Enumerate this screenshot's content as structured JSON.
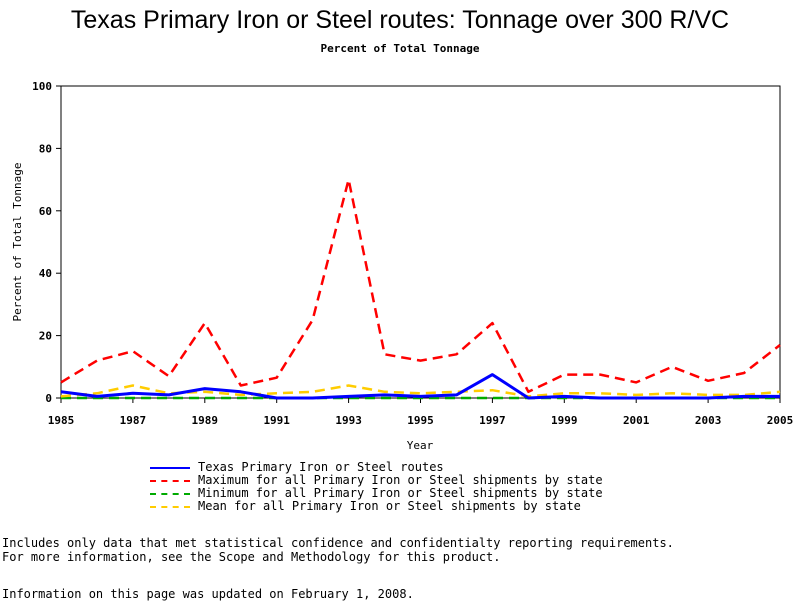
{
  "chart_data": {
    "type": "line",
    "title": "Texas Primary Iron or Steel routes: Tonnage over 300 R/VC",
    "subtitle": "Percent of Total Tonnage",
    "xlabel": "Year",
    "ylabel": "Percent of Total Tonnage",
    "xlim": [
      1985,
      2005
    ],
    "ylim": [
      0,
      100
    ],
    "x_ticks": [
      "1985",
      "1987",
      "1989",
      "1991",
      "1993",
      "1995",
      "1997",
      "1999",
      "2001",
      "2003",
      "2005"
    ],
    "y_ticks": [
      "0",
      "20",
      "40",
      "60",
      "80",
      "100"
    ],
    "grid": false,
    "legend_position": "bottom",
    "x": [
      1985,
      1986,
      1987,
      1988,
      1989,
      1990,
      1991,
      1992,
      1993,
      1994,
      1995,
      1996,
      1997,
      1998,
      1999,
      2000,
      2001,
      2002,
      2003,
      2004,
      2005
    ],
    "series": [
      {
        "name": "Texas Primary Iron or Steel routes",
        "color": "#0000ff",
        "dash": "solid",
        "values": [
          2,
          0.5,
          1.5,
          1,
          3,
          2,
          0,
          0,
          0.5,
          1,
          0.5,
          1,
          7.5,
          0,
          0.5,
          0,
          0,
          0,
          0,
          0.5,
          0.5
        ]
      },
      {
        "name": "Maximum for all Primary Iron or Steel shipments by state",
        "color": "#ff0000",
        "dash": "dashed",
        "values": [
          5,
          12,
          15,
          7,
          24,
          4,
          6.5,
          25,
          70,
          14,
          12,
          14,
          24,
          2,
          7.5,
          7.5,
          5,
          10,
          5.5,
          8,
          17
        ]
      },
      {
        "name": "Minimum for all Primary Iron or Steel shipments by state",
        "color": "#00aa00",
        "dash": "dashed",
        "values": [
          0,
          0,
          0,
          0,
          0,
          0,
          0,
          0,
          0,
          0,
          0,
          0,
          0,
          0,
          0,
          0,
          0,
          0,
          0,
          0,
          0
        ]
      },
      {
        "name": "Mean for all Primary Iron or Steel shipments by state",
        "color": "#ffcc00",
        "dash": "dashed",
        "values": [
          0.5,
          1.5,
          4,
          1.5,
          2,
          1,
          1.5,
          2,
          4,
          2,
          1.5,
          2,
          2.5,
          0.5,
          1.5,
          1.5,
          1,
          1.5,
          1,
          1,
          2
        ]
      }
    ]
  },
  "notes": {
    "line1": "Includes only data that met statistical confidence and confidentialty reporting requirements.",
    "line2": "For more information, see the Scope and Methodology for this product."
  },
  "updated": "Information on this page was updated on February 1, 2008."
}
